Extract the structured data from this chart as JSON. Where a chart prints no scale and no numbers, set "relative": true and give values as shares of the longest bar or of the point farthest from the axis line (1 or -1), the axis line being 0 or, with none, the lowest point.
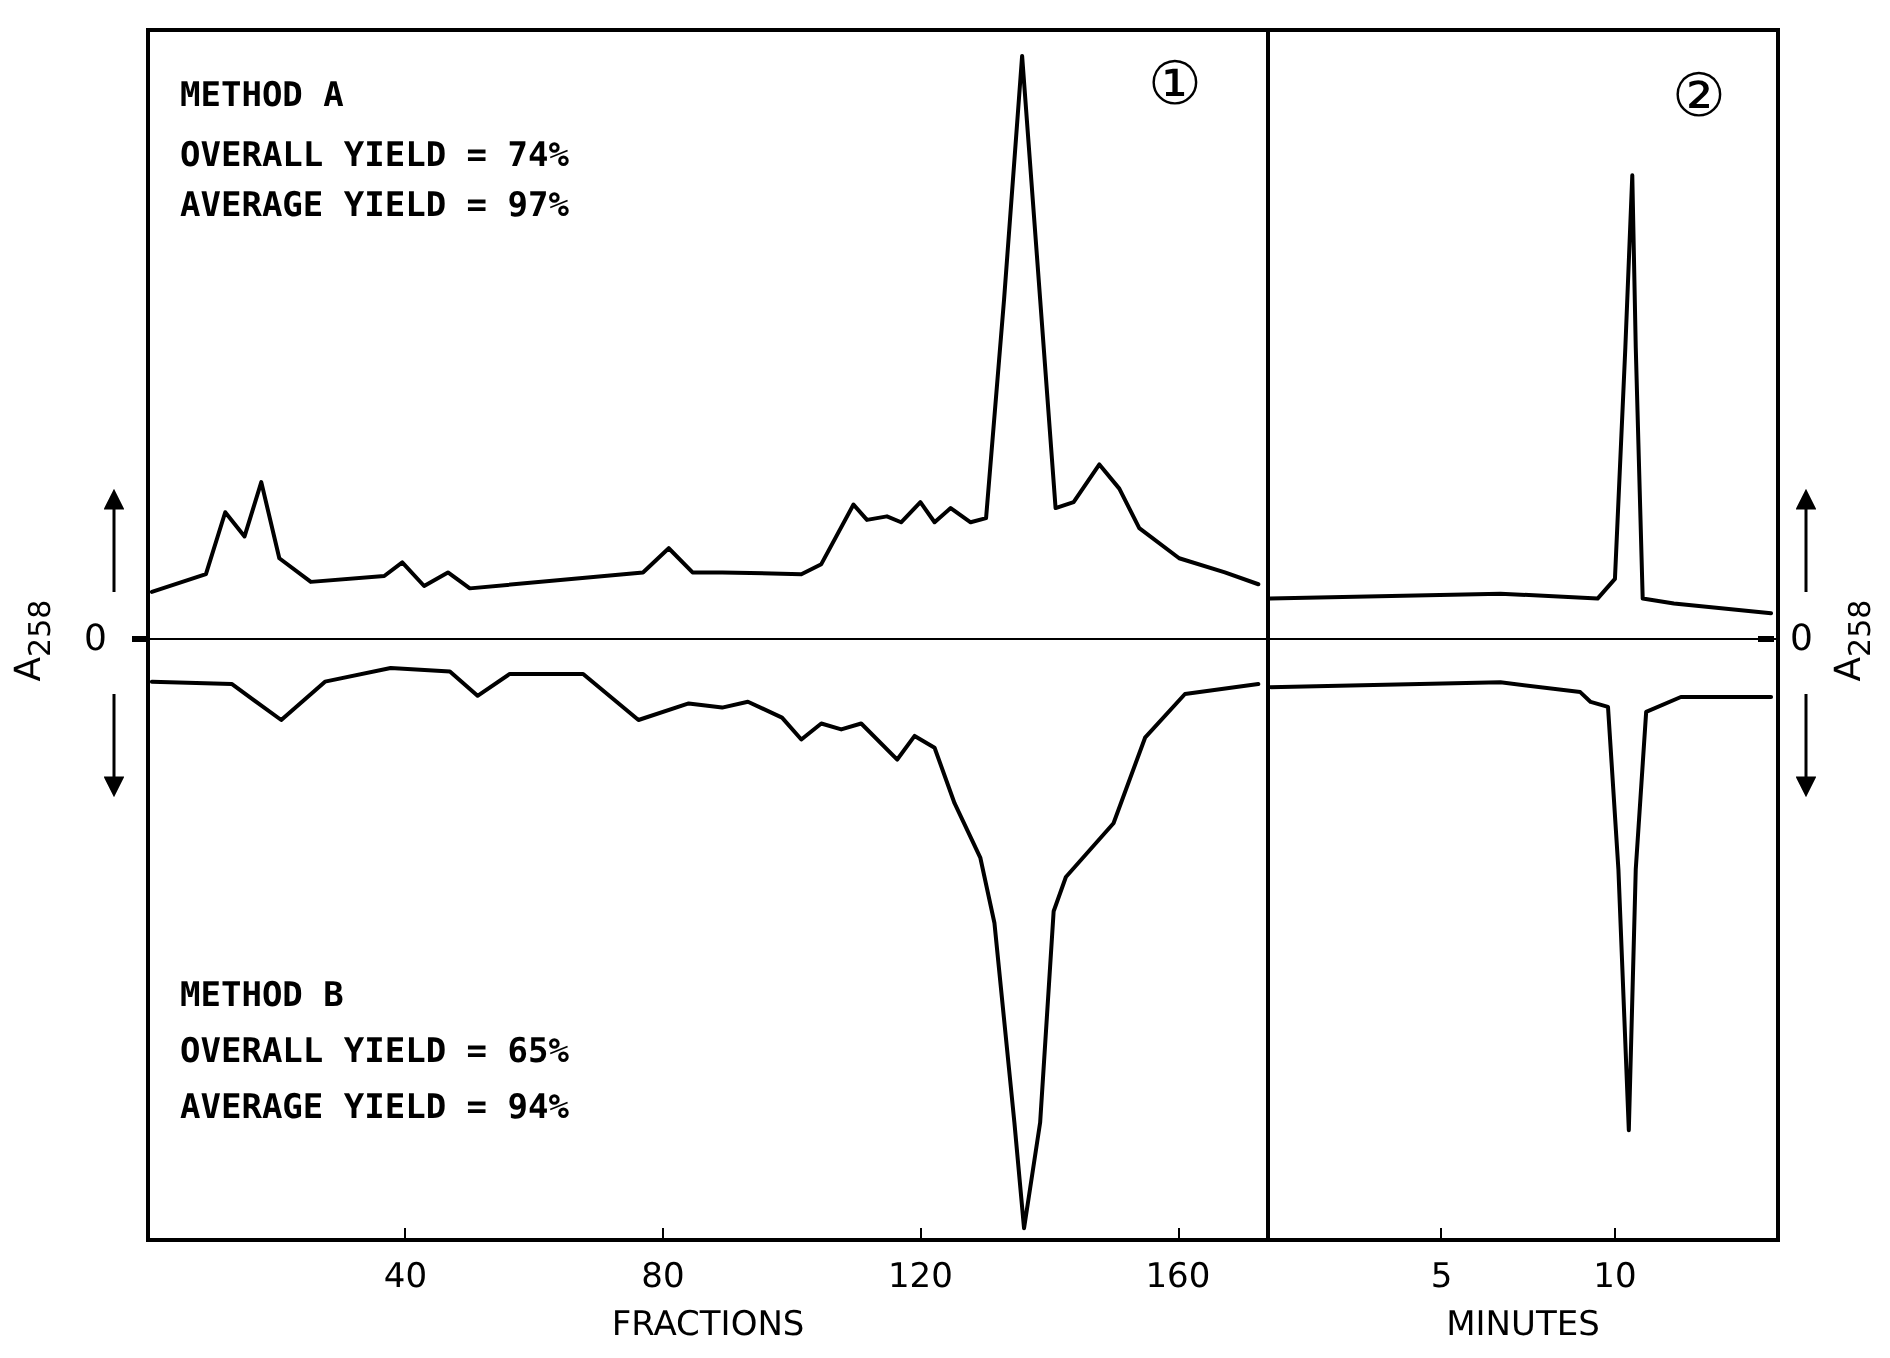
{
  "chart_data": [
    {
      "type": "line",
      "relative": true,
      "xlabel": "FRACTIONS",
      "ylabel": "A$_{258}$",
      "xlim": [
        0,
        174
      ],
      "xticks": [
        40,
        80,
        120,
        160
      ],
      "tick_labels": "x",
      "marker": "none",
      "line_style": "solid",
      "annotations": [
        "METHOD A",
        "OVERALL YIELD = 74%",
        "AVERAGE YIELD = 97%",
        "METHOD B",
        "OVERALL YIELD = 65%",
        "AVERAGE YIELD = 94%",
        "①",
        "0"
      ],
      "series": [
        {
          "color": "#000000",
          "x": [
            0.6,
            9,
            12,
            15,
            17.6,
            20.4,
            25.3,
            36.7,
            39.5,
            42.9,
            46.6,
            50,
            76.9,
            80.9,
            84.6,
            89.2,
            101.5,
            104.6,
            109.6,
            111.7,
            114.8,
            117,
            120,
            122.2,
            124.7,
            127.8,
            130.2,
            133,
            135.8,
            138.6,
            141,
            143.8,
            147.8,
            150.9,
            154,
            160.2,
            167.3,
            172.5
          ],
          "values": [
            0.078,
            0.108,
            0.213,
            0.172,
            0.264,
            0.135,
            0.095,
            0.105,
            0.128,
            0.088,
            0.111,
            0.084,
            0.111,
            0.152,
            0.111,
            0.111,
            0.108,
            0.125,
            0.226,
            0.2,
            0.206,
            0.196,
            0.23,
            0.196,
            0.22,
            0.196,
            0.203,
            0.574,
            0.986,
            0.574,
            0.22,
            0.23,
            0.294,
            0.253,
            0.186,
            0.135,
            0.111,
            0.091
          ]
        },
        {
          "color": "#000000",
          "x": [
            0.6,
            13,
            20.7,
            27.5,
            37.7,
            46.9,
            51.2,
            56.2,
            67.6,
            76.2,
            84,
            89.2,
            93.2,
            98.5,
            101.5,
            104.6,
            107.7,
            110.8,
            116.4,
            119.1,
            122.2,
            125.3,
            129.3,
            131.5,
            134.6,
            136.1,
            138.6,
            140.7,
            142.6,
            150,
            154.9,
            161.1,
            172.5
          ],
          "values": [
            -0.074,
            -0.078,
            -0.139,
            -0.074,
            -0.051,
            -0.057,
            -0.098,
            -0.061,
            -0.061,
            -0.139,
            -0.111,
            -0.118,
            -0.108,
            -0.135,
            -0.172,
            -0.145,
            -0.155,
            -0.145,
            -0.206,
            -0.166,
            -0.186,
            -0.28,
            -0.372,
            -0.483,
            -0.821,
            -1,
            -0.821,
            -0.463,
            -0.405,
            -0.314,
            -0.169,
            -0.095,
            -0.078
          ]
        }
      ]
    },
    {
      "type": "line",
      "relative": true,
      "xlabel": "MINUTES",
      "ylabel": "A$_{258}$",
      "xlim": [
        0,
        14.7
      ],
      "xticks": [
        5,
        10
      ],
      "tick_labels": "x",
      "marker": "none",
      "line_style": "solid",
      "annotations": [
        "②",
        "0"
      ],
      "series": [
        {
          "color": "#000000",
          "x": [
            0,
            6.7,
            9.5,
            10,
            10.3,
            10.5,
            10.6,
            10.8,
            11.7,
            14.5
          ],
          "values": [
            0.08,
            0.09,
            0.08,
            0.12,
            0.59,
            0.94,
            0.59,
            0.08,
            0.07,
            0.05
          ]
        },
        {
          "color": "#000000",
          "x": [
            0,
            6.7,
            9,
            9.3,
            9.8,
            10.1,
            10.4,
            10.6,
            10.9,
            11.9,
            14.5
          ],
          "values": [
            -0.1,
            -0.09,
            -0.11,
            -0.13,
            -0.14,
            -0.47,
            -1,
            -0.47,
            -0.15,
            -0.12,
            -0.12
          ]
        }
      ]
    }
  ]
}
